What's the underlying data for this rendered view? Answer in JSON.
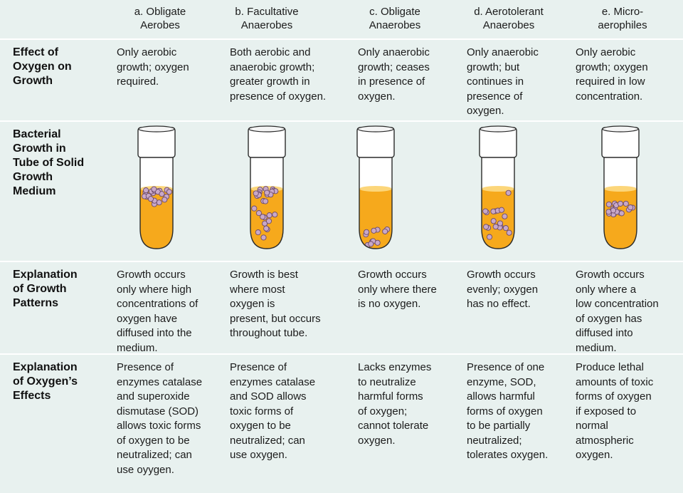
{
  "headers": [
    "a.  Obligate\nAerobes",
    "b.  Facultative\nAnaerobes",
    "c.  Obligate\nAnaerobes",
    "d.  Aerotolerant\nAnaerobes",
    "e.  Micro-\naerophiles"
  ],
  "row_labels": {
    "effect": "Effect of\nOxygen on\nGrowth",
    "tubes": "Bacterial\nGrowth in\nTube of Solid\nGrowth\nMedium",
    "explain": "Explanation\nof Growth\nPatterns",
    "oxygen": "Explanation\nof Oxygen’s\nEffects"
  },
  "effect": [
    "Only aerobic\ngrowth; oxygen\nrequired.",
    "Both aerobic and\nanaerobic growth;\ngreater growth in\npresence of oxygen.",
    "Only anaerobic\ngrowth; ceases\nin presence of\noxygen.",
    "Only anaerobic\ngrowth; but\ncontinues in\npresence of\noxygen.",
    "Only aerobic\ngrowth; oxygen\nrequired in low\nconcentration."
  ],
  "explain": [
    "Growth occurs\nonly where high\nconcentrations of\noxygen have\ndiffused into the\nmedium.",
    "Growth is best\nwhere most\noxygen is\npresent, but occurs\nthroughout tube.",
    "Growth occurs\nonly where there\nis no oxygen.",
    "Growth occurs\nevenly; oxygen\nhas no effect.",
    "Growth occurs\nonly where a\nlow concentration\nof oxygen has\ndiffused into\nmedium."
  ],
  "oxygen": [
    "Presence of\nenzymes catalase\nand superoxide\ndismutase (SOD)\nallows toxic forms\nof oxygen to be\nneutralized; can\nuse oyygen.",
    "Presence of\nenzymes catalase\nand SOD allows\ntoxic forms of\noxygen to be\nneutralized; can\nuse oxygen.",
    "Lacks enzymes\nto neutralize\nharmful forms\nof oxygen;\ncannot tolerate\noxygen.",
    "Presence of one\nenzyme, SOD,\nallows harmful\nforms of oxygen\nto be partially\nneutralized;\ntolerates oxygen.",
    "Produce lethal\namounts of toxic\nforms of oxygen\nif exposed to\nnormal\natmospheric\noxygen."
  ],
  "tube_patterns": [
    "top-surface",
    "gradient-top-dense",
    "bottom",
    "even",
    "band-below-surface"
  ],
  "colors": {
    "background": "#e8f1ef",
    "medium": "#f6a91c",
    "medium_light": "#fcd67a",
    "colony_fill": "#c8a8c8",
    "colony_stroke": "#6b4a6b",
    "cap": "#ffffff",
    "outline": "#2a2a2a"
  }
}
